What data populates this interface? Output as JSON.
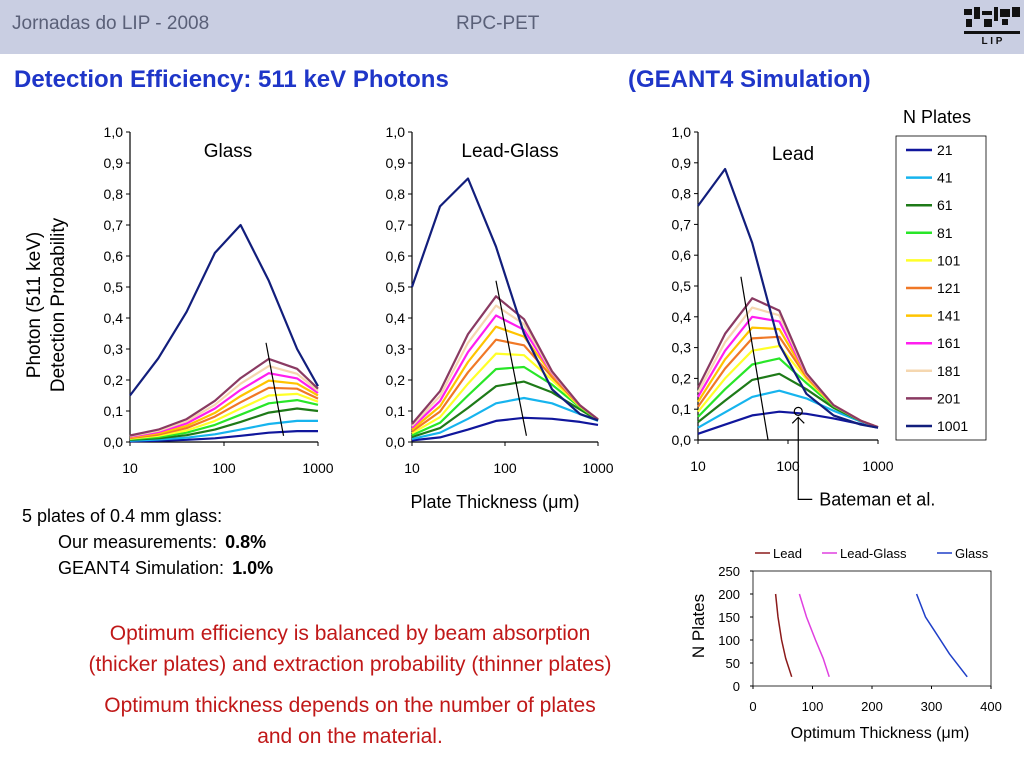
{
  "header": {
    "left": "Jornadas do LIP - 2008",
    "center": "RPC-PET",
    "logo_icon": "lip-logo-icon"
  },
  "slide_title": {
    "main": "Detection Efficiency: 511 keV Photons",
    "sim": "(GEANT4 Simulation)"
  },
  "left_notes": {
    "line1": "5 plates of 0.4 mm glass:",
    "line2_label": "Our measurements:",
    "line2_value": "0.8%",
    "line3_label": "GEANT4 Simulation:",
    "line3_value": "1.0%"
  },
  "conclusions": [
    "Optimum efficiency is balanced by beam absorption",
    "(thicker plates) and extraction probability (thinner plates)",
    "Optimum thickness depends on the number of plates",
    "and on the material."
  ],
  "colors": {
    "title_blue": "#1f36c8",
    "header_bg": "#c9cee2",
    "header_text": "#5a6078",
    "conclusion_red": "#c01818"
  },
  "chart_data": [
    {
      "type": "line",
      "panel": "Glass",
      "ylabel": "Photon (511 keV) Detection Probability",
      "ylabel_lines": [
        "Photon (511 keV)",
        "Detection Probability"
      ],
      "xscale": "log",
      "xlim": [
        10,
        1000
      ],
      "ylim": [
        0,
        1
      ],
      "x_ticks": [
        "10",
        "100",
        "1000"
      ],
      "y_ticks": [
        "0,0",
        "0,1",
        "0,2",
        "0,3",
        "0,4",
        "0,5",
        "0,6",
        "0,7",
        "0,8",
        "0,9",
        "1,0"
      ],
      "x": [
        10,
        20,
        40,
        80,
        150,
        300,
        600,
        1000
      ],
      "series": [
        {
          "name": "21",
          "values": [
            0.002,
            0.004,
            0.007,
            0.012,
            0.02,
            0.03,
            0.035,
            0.035
          ]
        },
        {
          "name": "41",
          "values": [
            0.004,
            0.008,
            0.014,
            0.025,
            0.04,
            0.058,
            0.068,
            0.068
          ]
        },
        {
          "name": "61",
          "values": [
            0.007,
            0.012,
            0.022,
            0.04,
            0.065,
            0.095,
            0.108,
            0.1
          ]
        },
        {
          "name": "81",
          "values": [
            0.009,
            0.016,
            0.03,
            0.055,
            0.088,
            0.125,
            0.135,
            0.12
          ]
        },
        {
          "name": "101",
          "values": [
            0.011,
            0.02,
            0.037,
            0.068,
            0.108,
            0.15,
            0.155,
            0.13
          ]
        },
        {
          "name": "121",
          "values": [
            0.013,
            0.024,
            0.045,
            0.082,
            0.128,
            0.175,
            0.172,
            0.14
          ]
        },
        {
          "name": "141",
          "values": [
            0.015,
            0.028,
            0.052,
            0.094,
            0.148,
            0.198,
            0.188,
            0.15
          ]
        },
        {
          "name": "161",
          "values": [
            0.017,
            0.032,
            0.06,
            0.108,
            0.168,
            0.222,
            0.205,
            0.158
          ]
        },
        {
          "name": "181",
          "values": [
            0.019,
            0.036,
            0.067,
            0.12,
            0.188,
            0.245,
            0.22,
            0.165
          ]
        },
        {
          "name": "201",
          "values": [
            0.021,
            0.04,
            0.074,
            0.133,
            0.206,
            0.268,
            0.236,
            0.172
          ]
        },
        {
          "name": "1001",
          "values": [
            0.15,
            0.27,
            0.42,
            0.61,
            0.7,
            0.52,
            0.3,
            0.18
          ]
        }
      ],
      "optimum_line": {
        "x": [
          280,
          430
        ],
        "y": [
          0.32,
          0.02
        ]
      }
    },
    {
      "type": "line",
      "panel": "Lead-Glass",
      "xlabel": "Plate Thickness (μm)",
      "xscale": "log",
      "xlim": [
        10,
        1000
      ],
      "ylim": [
        0,
        1
      ],
      "x_ticks": [
        "10",
        "100",
        "1000"
      ],
      "y_ticks": [
        "0,0",
        "0,1",
        "0,2",
        "0,3",
        "0,4",
        "0,5",
        "0,6",
        "0,7",
        "0,8",
        "0,9",
        "1,0"
      ],
      "x": [
        10,
        20,
        40,
        80,
        160,
        320,
        640,
        1000
      ],
      "series": [
        {
          "name": "21",
          "values": [
            0.005,
            0.015,
            0.04,
            0.068,
            0.078,
            0.075,
            0.065,
            0.055
          ]
        },
        {
          "name": "41",
          "values": [
            0.01,
            0.03,
            0.075,
            0.125,
            0.142,
            0.125,
            0.09,
            0.068
          ]
        },
        {
          "name": "61",
          "values": [
            0.016,
            0.045,
            0.11,
            0.18,
            0.195,
            0.16,
            0.105,
            0.07
          ]
        },
        {
          "name": "81",
          "values": [
            0.022,
            0.062,
            0.15,
            0.235,
            0.242,
            0.185,
            0.112,
            0.072
          ]
        },
        {
          "name": "101",
          "values": [
            0.028,
            0.08,
            0.188,
            0.285,
            0.28,
            0.2,
            0.115,
            0.073
          ]
        },
        {
          "name": "121",
          "values": [
            0.034,
            0.098,
            0.225,
            0.33,
            0.312,
            0.21,
            0.117,
            0.073
          ]
        },
        {
          "name": "141",
          "values": [
            0.04,
            0.115,
            0.258,
            0.372,
            0.34,
            0.218,
            0.118,
            0.073
          ]
        },
        {
          "name": "161",
          "values": [
            0.046,
            0.132,
            0.29,
            0.408,
            0.362,
            0.222,
            0.118,
            0.073
          ]
        },
        {
          "name": "181",
          "values": [
            0.052,
            0.148,
            0.32,
            0.44,
            0.38,
            0.225,
            0.118,
            0.073
          ]
        },
        {
          "name": "201",
          "values": [
            0.058,
            0.164,
            0.348,
            0.47,
            0.396,
            0.228,
            0.118,
            0.073
          ]
        },
        {
          "name": "1001",
          "values": [
            0.5,
            0.76,
            0.85,
            0.63,
            0.35,
            0.17,
            0.09,
            0.07
          ]
        }
      ],
      "optimum_line": {
        "x": [
          80,
          170
        ],
        "y": [
          0.52,
          0.02
        ]
      }
    },
    {
      "type": "line",
      "panel": "Lead",
      "legend_title": "N Plates",
      "xscale": "log",
      "xlim": [
        10,
        1000
      ],
      "ylim": [
        0,
        1
      ],
      "x_ticks": [
        "10",
        "100",
        "1000"
      ],
      "y_ticks": [
        "0,0",
        "0,1",
        "0,2",
        "0,3",
        "0,4",
        "0,5",
        "0,6",
        "0,7",
        "0,8",
        "0,9",
        "1,0"
      ],
      "x": [
        10,
        20,
        40,
        80,
        160,
        320,
        640,
        1000
      ],
      "series": [
        {
          "name": "21",
          "values": [
            0.02,
            0.05,
            0.08,
            0.092,
            0.085,
            0.07,
            0.052,
            0.04
          ]
        },
        {
          "name": "41",
          "values": [
            0.04,
            0.09,
            0.14,
            0.16,
            0.135,
            0.095,
            0.06,
            0.042
          ]
        },
        {
          "name": "61",
          "values": [
            0.058,
            0.128,
            0.195,
            0.215,
            0.165,
            0.105,
            0.062,
            0.042
          ]
        },
        {
          "name": "81",
          "values": [
            0.075,
            0.165,
            0.245,
            0.265,
            0.185,
            0.11,
            0.063,
            0.042
          ]
        },
        {
          "name": "101",
          "values": [
            0.092,
            0.2,
            0.29,
            0.305,
            0.198,
            0.112,
            0.063,
            0.042
          ]
        },
        {
          "name": "121",
          "values": [
            0.108,
            0.232,
            0.33,
            0.335,
            0.205,
            0.113,
            0.063,
            0.042
          ]
        },
        {
          "name": "141",
          "values": [
            0.124,
            0.262,
            0.365,
            0.36,
            0.21,
            0.113,
            0.063,
            0.042
          ]
        },
        {
          "name": "161",
          "values": [
            0.14,
            0.29,
            0.4,
            0.385,
            0.213,
            0.113,
            0.063,
            0.042
          ]
        },
        {
          "name": "181",
          "values": [
            0.155,
            0.318,
            0.43,
            0.405,
            0.215,
            0.113,
            0.063,
            0.042
          ]
        },
        {
          "name": "201",
          "values": [
            0.17,
            0.345,
            0.46,
            0.42,
            0.217,
            0.113,
            0.063,
            0.042
          ]
        },
        {
          "name": "1001",
          "values": [
            0.76,
            0.88,
            0.64,
            0.31,
            0.15,
            0.08,
            0.05,
            0.04
          ]
        }
      ],
      "optimum_line": {
        "x": [
          30,
          60
        ],
        "y": [
          0.53,
          0.0
        ]
      },
      "measurement": {
        "x": 130,
        "y": 0.08
      },
      "annotation": "Bateman et al."
    },
    {
      "type": "line",
      "xlabel": "Optimum Thickness (μm)",
      "ylabel": "N Plates",
      "xlim": [
        0,
        400
      ],
      "ylim": [
        0,
        250
      ],
      "x_ticks": [
        "0",
        "100",
        "200",
        "300",
        "400"
      ],
      "y_ticks": [
        "0",
        "50",
        "100",
        "150",
        "200",
        "250"
      ],
      "legend": "top",
      "series": [
        {
          "name": "Lead",
          "color": "#8b1a1a",
          "x": [
            38,
            42,
            48,
            55,
            65
          ],
          "y": [
            200,
            150,
            100,
            60,
            20
          ]
        },
        {
          "name": "Lead-Glass",
          "color": "#e040e0",
          "x": [
            78,
            90,
            105,
            118,
            128
          ],
          "y": [
            200,
            150,
            100,
            60,
            20
          ]
        },
        {
          "name": "Glass",
          "color": "#1f3fc8",
          "x": [
            275,
            290,
            305,
            330,
            360
          ],
          "y": [
            200,
            150,
            120,
            70,
            20
          ]
        }
      ]
    }
  ],
  "series_colors": {
    "21": "#10169c",
    "41": "#16b4ee",
    "61": "#1e7a18",
    "81": "#28e628",
    "101": "#ffff28",
    "121": "#f07826",
    "141": "#ffc400",
    "161": "#ff1eef",
    "181": "#f5d7b0",
    "201": "#8a3a62",
    "1001": "#121e7c"
  }
}
